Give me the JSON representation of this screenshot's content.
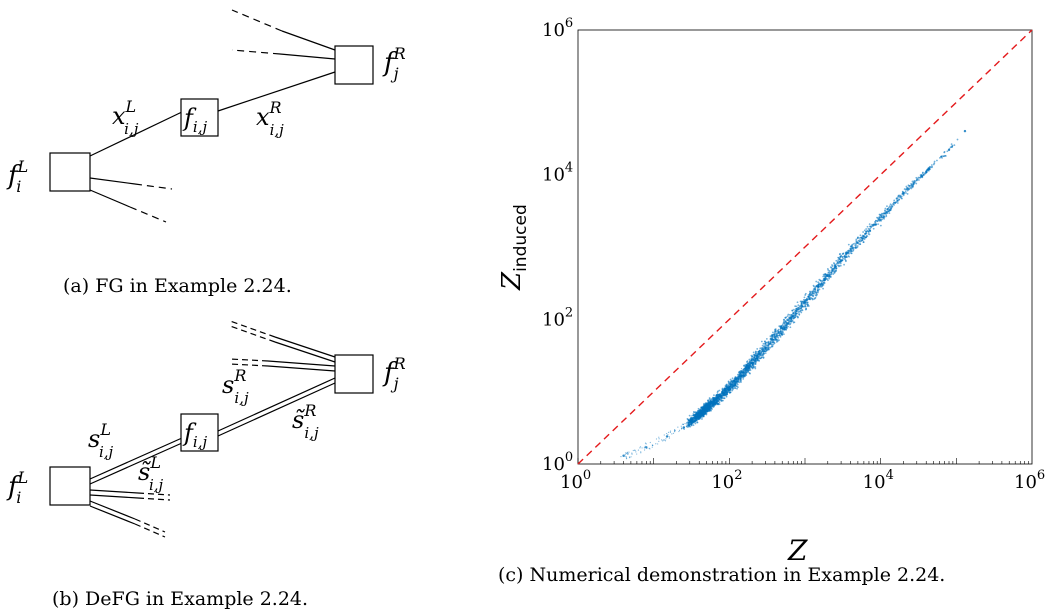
{
  "panel_a": {
    "caption": "(a) FG in Example 2.24.",
    "labels": {
      "fL": {
        "base": "f",
        "sup": "L",
        "sub": "i"
      },
      "fR": {
        "base": "f",
        "sup": "R",
        "sub": "j"
      },
      "fij": {
        "base": "f",
        "sub": "i,j"
      },
      "xL": {
        "base": "x",
        "sup": "L",
        "sub": "i,j"
      },
      "xR": {
        "base": "x",
        "sup": "R",
        "sub": "i,j"
      }
    }
  },
  "panel_b": {
    "caption": "(b) DeFG in Example 2.24.",
    "labels": {
      "fL": {
        "base": "f",
        "sup": "L",
        "sub": "i"
      },
      "fR": {
        "base": "f",
        "sup": "R",
        "sub": "j"
      },
      "fij": {
        "base": "f",
        "sub": "i,j"
      },
      "sL": {
        "base": "s",
        "sup": "L",
        "sub": "i,j"
      },
      "sLt": {
        "base": "s̃",
        "sup": "L",
        "sub": "i,j"
      },
      "sR": {
        "base": "s",
        "sup": "R",
        "sub": "i,j"
      },
      "sRt": {
        "base": "s̃",
        "sup": "R",
        "sub": "i,j"
      }
    }
  },
  "panel_c": {
    "caption": "(c) Numerical demonstration in Example 2.24.",
    "xlabel": "Z",
    "ylabel_base": "Z",
    "ylabel_sub": "induced",
    "tick_base": "10",
    "x_tick_exps": [
      "0",
      "2",
      "4",
      "6"
    ],
    "y_tick_exps": [
      "0",
      "2",
      "4",
      "6"
    ]
  },
  "chart_data": {
    "type": "scatter",
    "xlabel": "Z",
    "ylabel": "Z_induced",
    "xscale": "log",
    "yscale": "log",
    "xlim": [
      1,
      1000000
    ],
    "ylim": [
      1,
      1000000
    ],
    "xticks": [
      1,
      100,
      10000,
      1000000
    ],
    "yticks": [
      1,
      100,
      10000,
      1000000
    ],
    "series": [
      {
        "style": "points",
        "color": "#0072bd",
        "points": [
          [
            4,
            1.3
          ],
          [
            8,
            1.7
          ],
          [
            15,
            2.4
          ],
          [
            25,
            3.2
          ],
          [
            40,
            4.8
          ],
          [
            60,
            7
          ],
          [
            90,
            10
          ],
          [
            130,
            15
          ],
          [
            200,
            25
          ],
          [
            300,
            40
          ],
          [
            450,
            65
          ],
          [
            700,
            110
          ],
          [
            1000,
            170
          ],
          [
            1500,
            280
          ],
          [
            2000,
            400
          ],
          [
            3000,
            650
          ],
          [
            4000,
            900
          ],
          [
            6000,
            1400
          ],
          [
            8000,
            2000
          ],
          [
            12000,
            3000
          ],
          [
            20000,
            5500
          ],
          [
            40000,
            11000
          ],
          [
            80000,
            22000
          ],
          [
            130000,
            40000
          ]
        ]
      },
      {
        "style": "dashed-line",
        "color": "#e41a1c",
        "points": [
          [
            1,
            1
          ],
          [
            1000000,
            1000000
          ]
        ]
      }
    ]
  }
}
